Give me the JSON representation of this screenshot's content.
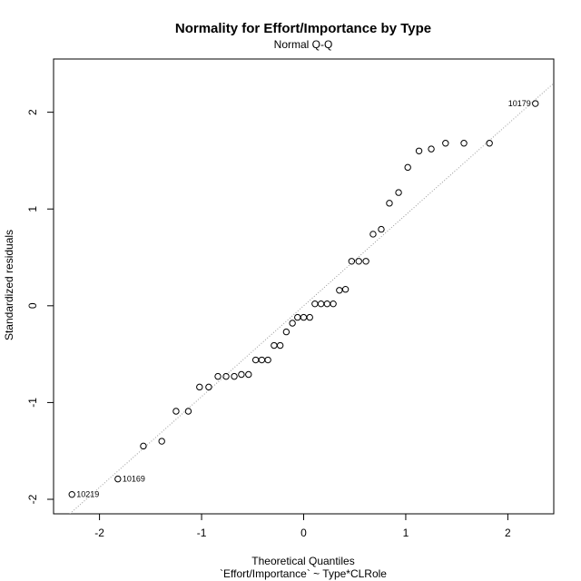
{
  "chart_data": {
    "type": "scatter",
    "title": "Normality for Effort/Importance by Type",
    "subtitle": "Normal Q-Q",
    "xlabel": "Theoretical Quantiles",
    "xlabel2": "`Effort/Importance` ~ Type*CLRole",
    "ylabel": "Standardized residuals",
    "xlim": [
      -2.45,
      2.45
    ],
    "ylim": [
      -2.15,
      2.55
    ],
    "x_ticks": [
      -2,
      -1,
      0,
      1,
      2
    ],
    "y_ticks": [
      -2,
      -1,
      0,
      1,
      2
    ],
    "x_tick_labels": [
      "-2",
      "-1",
      "0",
      "1",
      "2"
    ],
    "y_tick_labels": [
      "-2",
      "-1",
      "0",
      "1",
      "2"
    ],
    "reference_line": {
      "style": "dotted",
      "color": "#999999",
      "points": [
        [
          -2.45,
          -2.3
        ],
        [
          2.45,
          2.3
        ]
      ]
    },
    "points": [
      {
        "x": -2.27,
        "y": -1.95
      },
      {
        "x": -1.82,
        "y": -1.79
      },
      {
        "x": -1.57,
        "y": -1.45
      },
      {
        "x": -1.39,
        "y": -1.4
      },
      {
        "x": -1.25,
        "y": -1.09
      },
      {
        "x": -1.13,
        "y": -1.09
      },
      {
        "x": -1.02,
        "y": -0.84
      },
      {
        "x": -0.93,
        "y": -0.84
      },
      {
        "x": -0.84,
        "y": -0.73
      },
      {
        "x": -0.76,
        "y": -0.73
      },
      {
        "x": -0.68,
        "y": -0.73
      },
      {
        "x": -0.61,
        "y": -0.71
      },
      {
        "x": -0.54,
        "y": -0.71
      },
      {
        "x": -0.47,
        "y": -0.56
      },
      {
        "x": -0.41,
        "y": -0.56
      },
      {
        "x": -0.35,
        "y": -0.56
      },
      {
        "x": -0.29,
        "y": -0.41
      },
      {
        "x": -0.23,
        "y": -0.41
      },
      {
        "x": -0.17,
        "y": -0.27
      },
      {
        "x": -0.11,
        "y": -0.18
      },
      {
        "x": -0.06,
        "y": -0.12
      },
      {
        "x": 0.0,
        "y": -0.12
      },
      {
        "x": 0.06,
        "y": -0.12
      },
      {
        "x": 0.11,
        "y": 0.02
      },
      {
        "x": 0.17,
        "y": 0.02
      },
      {
        "x": 0.23,
        "y": 0.02
      },
      {
        "x": 0.29,
        "y": 0.02
      },
      {
        "x": 0.35,
        "y": 0.16
      },
      {
        "x": 0.41,
        "y": 0.17
      },
      {
        "x": 0.47,
        "y": 0.46
      },
      {
        "x": 0.54,
        "y": 0.46
      },
      {
        "x": 0.61,
        "y": 0.46
      },
      {
        "x": 0.68,
        "y": 0.74
      },
      {
        "x": 0.76,
        "y": 0.79
      },
      {
        "x": 0.84,
        "y": 1.06
      },
      {
        "x": 0.93,
        "y": 1.17
      },
      {
        "x": 1.02,
        "y": 1.43
      },
      {
        "x": 1.13,
        "y": 1.6
      },
      {
        "x": 1.25,
        "y": 1.62
      },
      {
        "x": 1.39,
        "y": 1.68
      },
      {
        "x": 1.57,
        "y": 1.68
      },
      {
        "x": 1.82,
        "y": 1.68
      },
      {
        "x": 2.27,
        "y": 2.09
      }
    ],
    "labels": [
      {
        "text": "10219",
        "x": -2.27,
        "y": -1.95,
        "side": "right"
      },
      {
        "text": "10169",
        "x": -1.82,
        "y": -1.79,
        "side": "right"
      },
      {
        "text": "10179",
        "x": 2.27,
        "y": 2.09,
        "side": "left"
      }
    ]
  }
}
